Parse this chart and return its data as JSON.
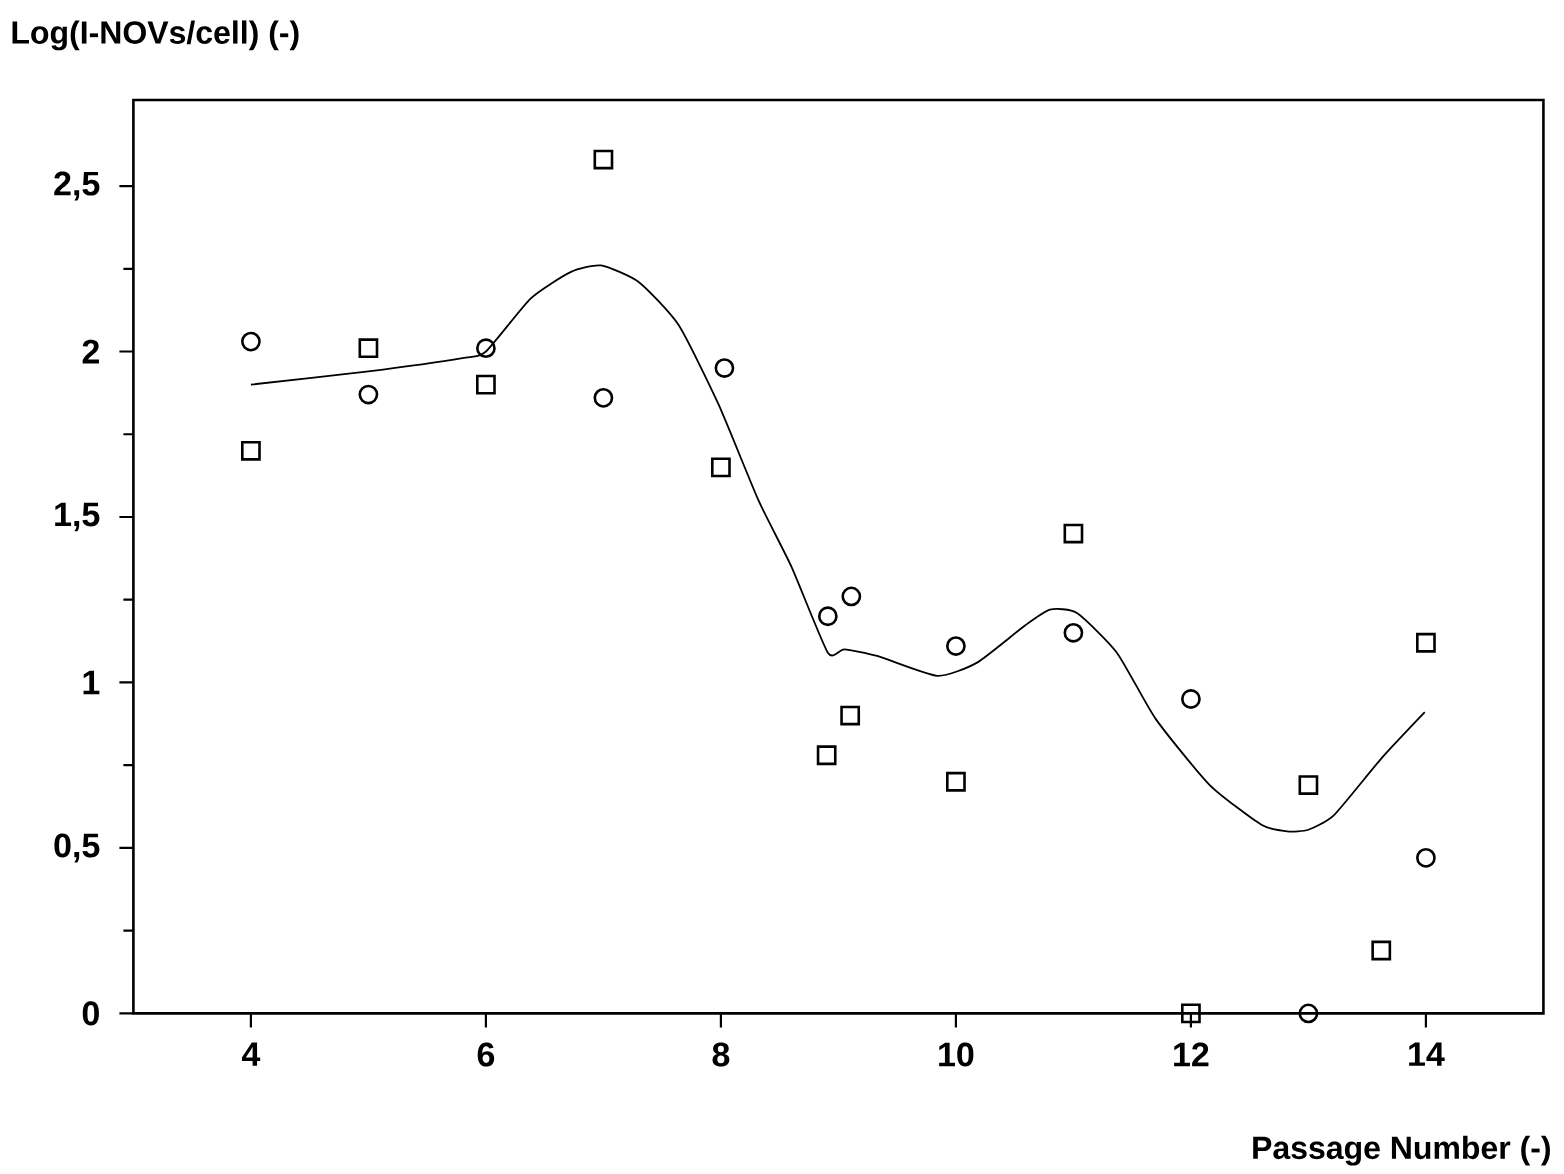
{
  "chart_data": {
    "type": "scatter",
    "xlabel": "Passage Number (-)",
    "ylabel": "Log(I-NOVs/cell) (-)",
    "xlim": [
      3,
      15
    ],
    "ylim": [
      0,
      2.76
    ],
    "xticks": [
      4,
      6,
      8,
      10,
      12,
      14
    ],
    "yticks": [
      0,
      {
        "value": 0.5,
        "label": "0,5"
      },
      1,
      {
        "value": 1.5,
        "label": "1,5"
      },
      2,
      {
        "value": 2.5,
        "label": "2,5"
      }
    ],
    "grid": false,
    "series": [
      {
        "marker": "circle",
        "color": "#000000",
        "x": [
          4,
          5,
          6,
          7,
          8.03,
          8.91,
          9.11,
          10,
          11,
          12,
          13,
          14
        ],
        "values": [
          2.03,
          1.87,
          2.01,
          1.86,
          1.95,
          1.2,
          1.26,
          1.11,
          1.15,
          0.95,
          0,
          0.47
        ]
      },
      {
        "marker": "square",
        "color": "#000000",
        "x": [
          4,
          5,
          6,
          7,
          8,
          8.9,
          9.1,
          10,
          11,
          12,
          13,
          13.62,
          14
        ],
        "values": [
          1.7,
          2.01,
          1.9,
          2.58,
          1.65,
          0.78,
          0.9,
          0.7,
          1.45,
          0,
          0.69,
          0.19,
          1.12
        ]
      },
      {
        "type": "line",
        "marker": "none",
        "color": "#000000",
        "x": [
          4,
          5,
          5.8,
          6,
          6.38,
          6.72,
          6.98,
          7.3,
          7.64,
          7.98,
          8.32,
          8.6,
          8.91,
          9.05,
          9.33,
          9.84,
          10.18,
          10.58,
          10.8,
          11.03,
          11.37,
          11.7,
          12.16,
          12.6,
          12.82,
          13,
          13.22,
          13.62,
          13.99
        ],
        "values": [
          1.9,
          1.94,
          1.98,
          2.0,
          2.16,
          2.24,
          2.26,
          2.21,
          2.08,
          1.84,
          1.55,
          1.35,
          1.09,
          1.1,
          1.08,
          1.02,
          1.06,
          1.17,
          1.22,
          1.21,
          1.09,
          0.89,
          0.69,
          0.57,
          0.55,
          0.555,
          0.6,
          0.77,
          0.91
        ]
      }
    ]
  }
}
